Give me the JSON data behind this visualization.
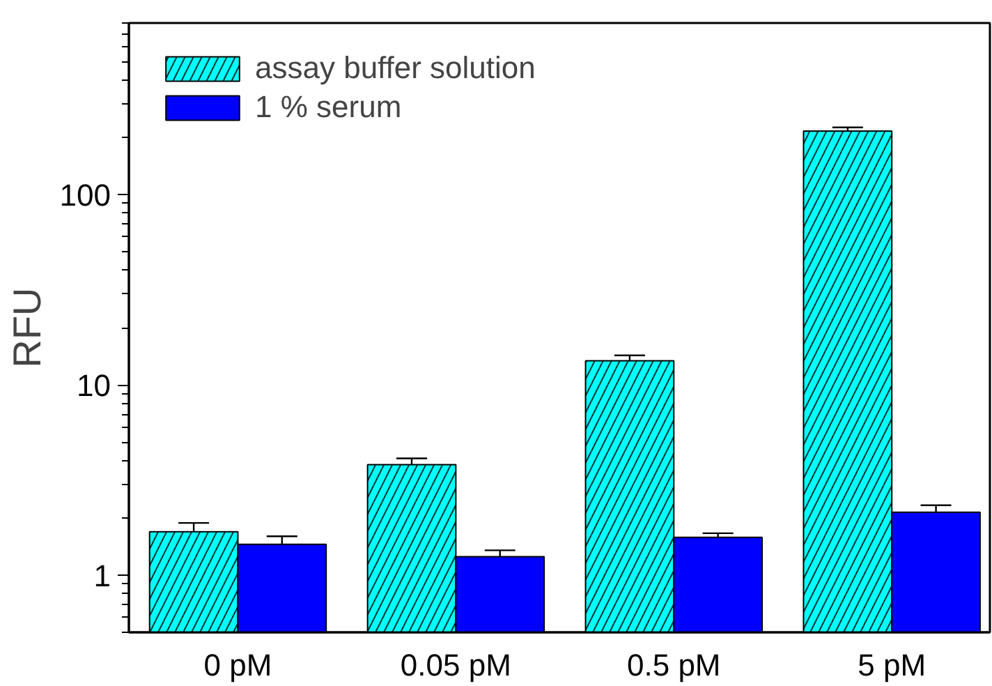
{
  "chart_data": {
    "type": "bar",
    "ylabel": "RFU",
    "categories": [
      "0 pM",
      "0.05 pM",
      "0.5 pM",
      "5 pM"
    ],
    "log": true,
    "ylim": [
      0.5,
      800
    ],
    "yticks": [
      {
        "value": 0.5,
        "label": null
      },
      {
        "value": 0.6,
        "label": null
      },
      {
        "value": 0.7,
        "label": null
      },
      {
        "value": 0.8,
        "label": null
      },
      {
        "value": 0.9,
        "label": null
      },
      1,
      {
        "value": 2,
        "label": null
      },
      {
        "value": 3,
        "label": null
      },
      {
        "value": 4,
        "label": null
      },
      {
        "value": 5,
        "label": null
      },
      {
        "value": 6,
        "label": null
      },
      {
        "value": 7,
        "label": null
      },
      {
        "value": 8,
        "label": null
      },
      {
        "value": 9,
        "label": null
      },
      10,
      {
        "value": 20,
        "label": null
      },
      {
        "value": 30,
        "label": null
      },
      {
        "value": 40,
        "label": null
      },
      {
        "value": 50,
        "label": null
      },
      {
        "value": 60,
        "label": null
      },
      {
        "value": 70,
        "label": null
      },
      {
        "value": 80,
        "label": null
      },
      {
        "value": 90,
        "label": null
      },
      100,
      {
        "value": 200,
        "label": null
      },
      {
        "value": 300,
        "label": null
      },
      {
        "value": 400,
        "label": null
      },
      {
        "value": 500,
        "label": null
      },
      {
        "value": 600,
        "label": null
      },
      {
        "value": 700,
        "label": null
      },
      {
        "value": 800,
        "label": null
      }
    ],
    "grid": false,
    "legend": "top left",
    "series": [
      {
        "name": "assay buffer solution",
        "color": "#00ffff",
        "values": [
          1.69,
          3.81,
          13.4,
          216
        ],
        "errors": [
          0.19,
          0.3,
          0.9,
          10
        ]
      },
      {
        "name": "1 % serum",
        "color": "#0000ff",
        "values": [
          1.45,
          1.25,
          1.58,
          2.14
        ],
        "errors": [
          0.15,
          0.1,
          0.08,
          0.19
        ]
      }
    ]
  }
}
